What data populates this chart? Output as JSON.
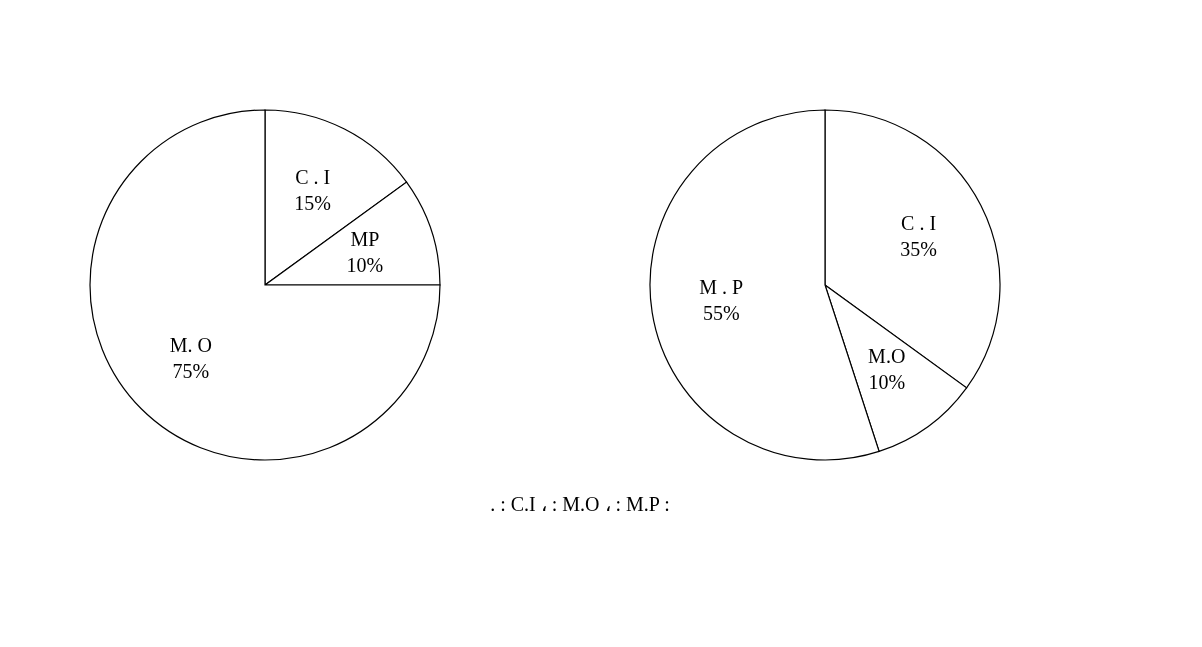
{
  "chart_data": [
    {
      "type": "pie",
      "categories": [
        "C . I",
        "MP",
        "M. O"
      ],
      "values": [
        15,
        10,
        75
      ],
      "colors": [
        "#ffffff",
        "#ffffff",
        "#ffffff"
      ],
      "value_labels": [
        "15%",
        "10%",
        "75%"
      ]
    },
    {
      "type": "pie",
      "categories": [
        "C . I",
        "M.O",
        "M . P"
      ],
      "values": [
        35,
        10,
        55
      ],
      "colors": [
        "#ffffff",
        "#ffffff",
        "#ffffff"
      ],
      "value_labels": [
        "35%",
        "10%",
        "55%"
      ],
      "annotations": [
        ".                      : C.I  ،                         : M.O  ،                              : M.P :"
      ]
    }
  ]
}
